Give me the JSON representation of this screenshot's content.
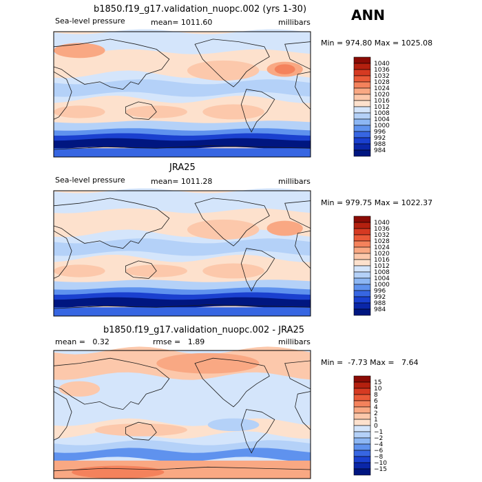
{
  "season": "ANN",
  "colors": {
    "warm": [
      "#fde1cd",
      "#fcc8ab",
      "#f9a883",
      "#f4825c",
      "#ea5a38",
      "#d63a22",
      "#b4200f",
      "#8b0b05"
    ],
    "cool": [
      "#ffffff",
      "#d4e5fb",
      "#b4d1f8",
      "#8db7f4",
      "#5f92ee",
      "#3766e2",
      "#1a40cf",
      "#0a26a8",
      "#001680"
    ],
    "land": "#1a1a1a"
  },
  "panels": [
    {
      "title": "b1850.f19_g17.validation_nuopc.002 (yrs 1-30)",
      "left_label": "Sea-level pressure",
      "stat_label": "mean=",
      "stat_value": "1011.60",
      "units": "millibars",
      "minmax": "Min = 974.80 Max = 1025.08",
      "colorbar": [
        "1040",
        "1036",
        "1032",
        "1028",
        "1024",
        "1020",
        "1016",
        "1012",
        "1008",
        "1004",
        "1000",
        "996",
        "992",
        "988",
        "984"
      ]
    },
    {
      "title": "JRA25",
      "left_label": "Sea-level pressure",
      "stat_label": "mean=",
      "stat_value": "1011.28",
      "units": "millibars",
      "minmax": "Min = 979.75 Max = 1022.37",
      "colorbar": [
        "1040",
        "1036",
        "1032",
        "1028",
        "1024",
        "1020",
        "1016",
        "1012",
        "1008",
        "1004",
        "1000",
        "996",
        "992",
        "988",
        "984"
      ]
    },
    {
      "title": "b1850.f19_g17.validation_nuopc.002 - JRA25",
      "left_label": "mean =",
      "left_value": "0.32",
      "stat_label": "rmse =",
      "stat_value": "1.89",
      "units": "millibars",
      "minmax": "Min =  -7.73 Max =   7.64",
      "colorbar": [
        "15",
        "10",
        "8",
        "6",
        "4",
        "2",
        "1",
        "0",
        "−1",
        "−2",
        "−4",
        "−6",
        "−8",
        "−10",
        "−15"
      ]
    }
  ]
}
